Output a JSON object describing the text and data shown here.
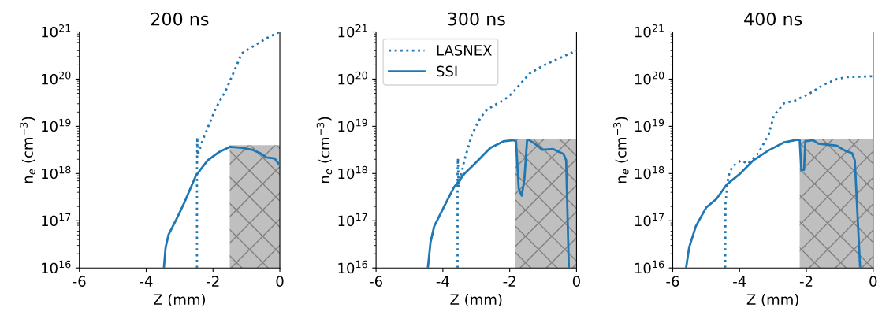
{
  "chart_data": [
    {
      "type": "line",
      "title": "200 ns",
      "xlabel": "Z (mm)",
      "ylabel": "n$_{e}$ (cm$^{−3}$)",
      "log": "y",
      "xlim": [
        -6,
        0
      ],
      "ylim": [
        1e+16,
        1e+21
      ],
      "xticks": [
        -6,
        -4,
        -2,
        0
      ],
      "yticks": [
        {
          "value": 1e+16,
          "label": "10$^{16}$"
        },
        {
          "value": 1e+17,
          "label": "10$^{17}$"
        },
        {
          "value": 1e+18,
          "label": "10$^{18}$"
        },
        {
          "value": 1e+19,
          "label": "10$^{19}$"
        },
        {
          "value": 1e+20,
          "label": "10$^{20}$"
        },
        {
          "value": 1e+21,
          "label": "10$^{21}$"
        }
      ],
      "series": [
        {
          "type": "area",
          "color": "#bfbfbf",
          "x": [
            -1.5,
            0
          ],
          "values": [
            4e+18,
            4e+18
          ]
        },
        {
          "color": "#1f77b4",
          "line_style": "dotted",
          "x": [
            -2.48,
            -2.48,
            -2.47,
            -2.46,
            -2.31,
            -1.92,
            -1.61,
            -1.38,
            -1.14,
            -0.83,
            -0.36,
            0
          ],
          "values": [
            1e+16,
            1e+18,
            5.9e+18,
            2.4e+18,
            5.1e+18,
            2.4e+19,
            5.9e+19,
            1.4e+20,
            3.5e+20,
            4.8e+20,
            7.6e+20,
            1e+21
          ]
        },
        {
          "color": "#1f77b4",
          "line_style": "solid",
          "x": [
            -3.47,
            -3.42,
            -3.33,
            -3.09,
            -2.86,
            -2.51,
            -2.16,
            -1.84,
            -1.49,
            -1.14,
            -0.83,
            -0.59,
            -0.4,
            -0.16,
            0
          ],
          "values": [
            1e+16,
            2.7e+16,
            5.1e+16,
            1.1e+17,
            2.4e+17,
            9.1e+17,
            1.9e+18,
            2.8e+18,
            3.7e+18,
            3.5e+18,
            3.2e+18,
            2.7e+18,
            2.2e+18,
            2.1e+18,
            1.5e+18
          ]
        }
      ]
    },
    {
      "type": "line",
      "title": "300 ns",
      "xlabel": "Z (mm)",
      "ylabel": "n$_{e}$ (cm$^{−3}$)",
      "log": "y",
      "xlim": [
        -6,
        0
      ],
      "ylim": [
        1e+16,
        1e+21
      ],
      "xticks": [
        -6,
        -4,
        -2,
        0
      ],
      "legend": "top left",
      "yticks": [
        {
          "value": 1e+16,
          "label": "10$^{16}$"
        },
        {
          "value": 1e+17,
          "label": "10$^{17}$"
        },
        {
          "value": 1e+18,
          "label": "10$^{18}$"
        },
        {
          "value": 1e+19,
          "label": "10$^{19}$"
        },
        {
          "value": 1e+20,
          "label": "10$^{20}$"
        },
        {
          "value": 1e+21,
          "label": "10$^{21}$"
        }
      ],
      "series": [
        {
          "type": "area",
          "color": "#bfbfbf",
          "x": [
            -1.85,
            0
          ],
          "values": [
            5.5e+18,
            5.5e+18
          ]
        },
        {
          "name": "LASNEX",
          "color": "#1f77b4",
          "line_style": "dotted",
          "x": [
            -3.56,
            -3.56,
            -3.55,
            -3.53,
            -3.36,
            -3.13,
            -2.93,
            -2.73,
            -2.5,
            -2.19,
            -1.91,
            -1.64,
            -1.41,
            -1.02,
            -0.55,
            0
          ],
          "values": [
            1e+16,
            1e+18,
            2.1e+18,
            5.1e+17,
            1.9e+18,
            6.6e+18,
            1.3e+19,
            2.1e+19,
            2.7e+19,
            3.5e+19,
            5.1e+19,
            8.5e+19,
            1.3e+20,
            1.9e+20,
            2.7e+20,
            4e+20
          ]
        },
        {
          "name": "SSI",
          "color": "#1f77b4",
          "line_style": "solid",
          "x": [
            -4.45,
            -4.37,
            -4.26,
            -3.98,
            -3.67,
            -3.36,
            -3.05,
            -2.58,
            -2.19,
            -1.88,
            -1.81,
            -1.73,
            -1.64,
            -1.56,
            -1.48,
            -1.41,
            -1.25,
            -1.02,
            -0.7,
            -0.39,
            -0.31,
            -0.23
          ],
          "values": [
            1e+16,
            3.5e+16,
            7.6e+16,
            1.9e+17,
            5.1e+17,
            9.8e+17,
            1.6e+18,
            3.5e+18,
            4.8e+18,
            5.1e+18,
            4.8e+18,
            4.8e+17,
            3.4e+17,
            7.6e+17,
            5.1e+18,
            5.1e+18,
            4.3e+18,
            3.2e+18,
            3.3e+18,
            2.6e+18,
            1.9e+18,
            1e+16
          ]
        }
      ]
    },
    {
      "type": "line",
      "title": "400 ns",
      "xlabel": "Z (mm)",
      "ylabel": "n$_{e}$ (cm$^{−3}$)",
      "log": "y",
      "xlim": [
        -6,
        0
      ],
      "ylim": [
        1e+16,
        1e+21
      ],
      "xticks": [
        -6,
        -4,
        -2,
        0
      ],
      "yticks": [
        {
          "value": 1e+16,
          "label": "10$^{16}$"
        },
        {
          "value": 1e+17,
          "label": "10$^{17}$"
        },
        {
          "value": 1e+18,
          "label": "10$^{18}$"
        },
        {
          "value": 1e+19,
          "label": "10$^{19}$"
        },
        {
          "value": 1e+20,
          "label": "10$^{20}$"
        },
        {
          "value": 1e+21,
          "label": "10$^{21}$"
        }
      ],
      "series": [
        {
          "type": "area",
          "color": "#bfbfbf",
          "x": [
            -2.2,
            0
          ],
          "values": [
            5.5e+18,
            5.5e+18
          ]
        },
        {
          "color": "#1f77b4",
          "line_style": "dotted",
          "x": [
            -4.43,
            -4.42,
            -4.34,
            -4.22,
            -3.95,
            -3.75,
            -3.44,
            -3.13,
            -2.97,
            -2.66,
            -2.34,
            -1.88,
            -1.48,
            -1.09,
            -0.78,
            0
          ],
          "values": [
            1e+16,
            2.4e+17,
            8.5e+17,
            1.4e+18,
            1.9e+18,
            1.6e+18,
            2.7e+18,
            6.6e+18,
            1.7e+19,
            3.1e+19,
            3.5e+19,
            5.1e+19,
            7.6e+19,
            1e+20,
            1.1e+20,
            1.15e+20
          ]
        },
        {
          "color": "#1f77b4",
          "line_style": "solid",
          "x": [
            -5.6,
            -5.51,
            -5.31,
            -5.0,
            -4.69,
            -4.38,
            -3.98,
            -3.59,
            -3.13,
            -2.66,
            -2.27,
            -2.2,
            -2.15,
            -2.07,
            -2.03,
            -1.8,
            -1.64,
            -1.09,
            -0.86,
            -0.63,
            -0.55,
            -0.39
          ],
          "values": [
            1e+16,
            2.7e+16,
            7.6e+16,
            1.9e+17,
            2.9e+17,
            5.9e+17,
            1e+18,
            1.9e+18,
            3.1e+18,
            4.6e+18,
            5.2e+18,
            5.1e+18,
            1.2e+18,
            1.2e+18,
            4.8e+18,
            5.1e+18,
            4.3e+18,
            3.9e+18,
            3.1e+18,
            2.7e+18,
            1.9e+18,
            1e+16
          ]
        }
      ]
    }
  ]
}
